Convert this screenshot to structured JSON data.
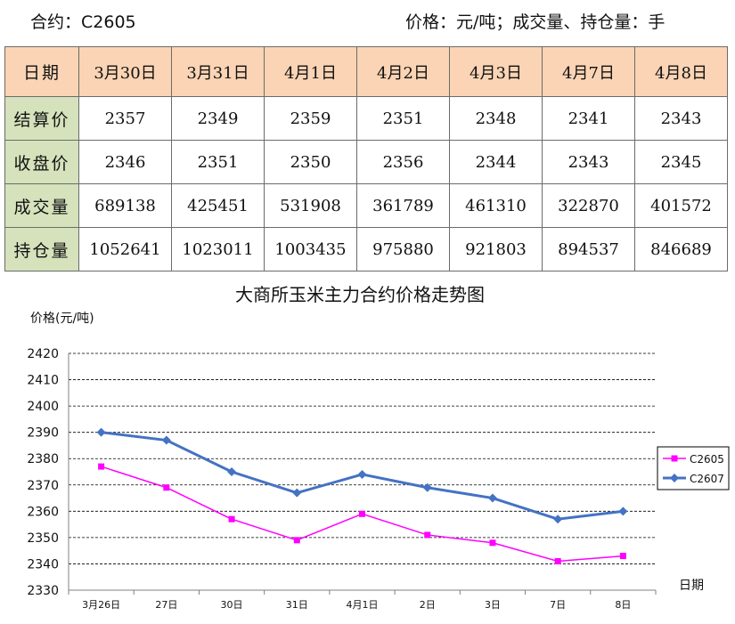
{
  "header": {
    "contract": "合约：C2605",
    "units": "价格：元/吨；成交量、持仓量：手"
  },
  "table": {
    "corner": "日期",
    "dates": [
      "3月30日",
      "3月31日",
      "4月1日",
      "4月2日",
      "4月3日",
      "4月7日",
      "4月8日"
    ],
    "rows": [
      {
        "label": "结算价",
        "values": [
          "2357",
          "2349",
          "2359",
          "2351",
          "2348",
          "2341",
          "2343"
        ]
      },
      {
        "label": "收盘价",
        "values": [
          "2346",
          "2351",
          "2350",
          "2356",
          "2344",
          "2343",
          "2345"
        ]
      },
      {
        "label": "成交量",
        "values": [
          "689138",
          "425451",
          "531908",
          "361789",
          "461310",
          "322870",
          "401572"
        ]
      },
      {
        "label": "持仓量",
        "values": [
          "1052641",
          "1023011",
          "1003435",
          "975880",
          "921803",
          "894537",
          "846689"
        ]
      }
    ]
  },
  "chart_data": {
    "type": "line",
    "title": "大商所玉米主力合约价格走势图",
    "ylabel": "价格(元/吨)",
    "xlabel": "日期",
    "categories": [
      "3月26日",
      "27日",
      "30日",
      "31日",
      "4月1日",
      "2日",
      "3日",
      "7日",
      "8日"
    ],
    "ylim": [
      2330,
      2420
    ],
    "yticks": [
      2330,
      2340,
      2350,
      2360,
      2370,
      2380,
      2390,
      2400,
      2410,
      2420
    ],
    "grid": "horizontal dashed",
    "legend_position": "right",
    "series": [
      {
        "name": "C2605",
        "color": "#ff00ff",
        "marker": "square",
        "values": [
          2377,
          2369,
          2357,
          2349,
          2359,
          2351,
          2348,
          2341,
          2343
        ]
      },
      {
        "name": "C2607",
        "color": "#4472c4",
        "marker": "diamond",
        "values": [
          2390,
          2387,
          2375,
          2367,
          2374,
          2369,
          2365,
          2357,
          2360
        ]
      }
    ]
  }
}
